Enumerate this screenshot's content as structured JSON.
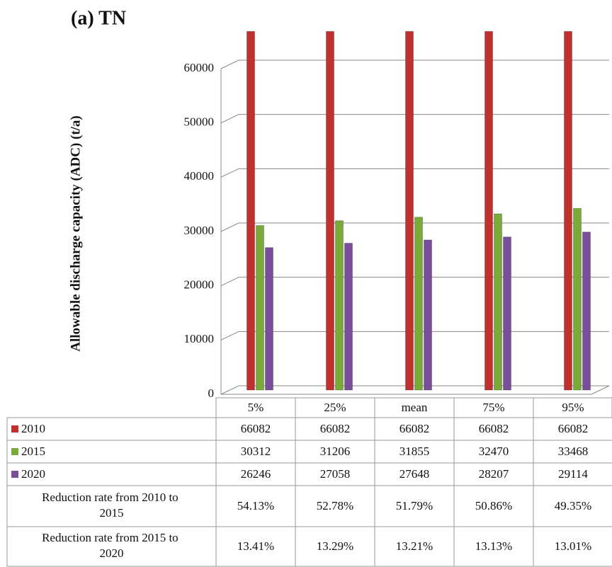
{
  "chart_data": {
    "type": "bar",
    "title": "(a) TN",
    "y_label": "Allowable discharge capacity (ADC) (t/a)",
    "categories": [
      "5%",
      "25%",
      "mean",
      "75%",
      "95%"
    ],
    "series": [
      {
        "name": "2010",
        "color": "#c0302e",
        "values": [
          66082,
          66082,
          66082,
          66082,
          66082
        ]
      },
      {
        "name": "2015",
        "color": "#7aab3a",
        "values": [
          30312,
          31206,
          31855,
          32470,
          33468
        ]
      },
      {
        "name": "2020",
        "color": "#7a4f9a",
        "values": [
          26246,
          27058,
          27648,
          28207,
          29114
        ]
      }
    ],
    "table_rows": [
      {
        "name": "Reduction rate from 2010 to 2015",
        "values": [
          "54.13%",
          "52.78%",
          "51.79%",
          "50.86%",
          "49.35%"
        ]
      },
      {
        "name": "Reduction rate from 2015 to 2020",
        "values": [
          "13.41%",
          "13.29%",
          "13.21%",
          "13.13%",
          "13.01%"
        ]
      }
    ],
    "ylim": [
      0,
      60000
    ],
    "yticks": [
      0,
      10000,
      20000,
      30000,
      40000,
      50000,
      60000
    ],
    "grid": true
  }
}
